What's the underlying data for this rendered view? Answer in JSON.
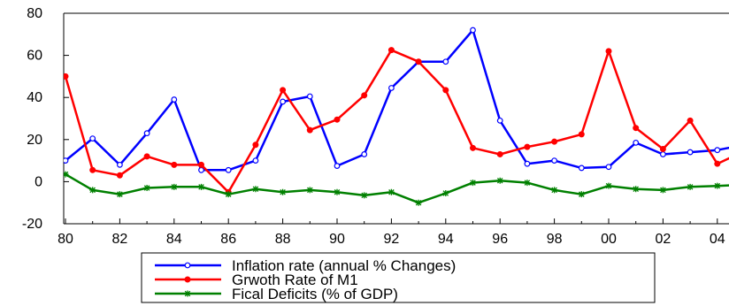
{
  "chart_data": {
    "type": "line",
    "x": [
      "80",
      "81",
      "82",
      "83",
      "84",
      "85",
      "86",
      "87",
      "88",
      "89",
      "90",
      "91",
      "92",
      "93",
      "94",
      "95",
      "96",
      "97",
      "98",
      "99",
      "00",
      "01",
      "02",
      "03",
      "04",
      "05"
    ],
    "xticks": [
      "80",
      "82",
      "84",
      "86",
      "88",
      "90",
      "92",
      "94",
      "96",
      "98",
      "00",
      "02",
      "04"
    ],
    "yticks": [
      "80",
      "60",
      "40",
      "20",
      "0",
      "-20"
    ],
    "ylim": [
      -20,
      80
    ],
    "grid": false,
    "legend_position": "bottom-center",
    "series": [
      {
        "name": "Inflation rate (annual % Changes)",
        "color": "#0000ff",
        "marker": "circle",
        "values": [
          10,
          20.5,
          8,
          23,
          39,
          5.5,
          5.5,
          10,
          38,
          40.5,
          7.5,
          13,
          44.5,
          57,
          57,
          72,
          29,
          8.5,
          10,
          6.5,
          7,
          18.5,
          13,
          14,
          15,
          17.5
        ]
      },
      {
        "name": "Grwoth Rate of M1",
        "color": "#ff0000",
        "marker": "dot",
        "values": [
          50,
          5.5,
          3,
          12,
          8,
          8,
          -5,
          17.5,
          43.5,
          24.5,
          29.5,
          41,
          62.5,
          57,
          43.5,
          16,
          13,
          16.5,
          19,
          22.5,
          62,
          25.5,
          15.5,
          29,
          8.5,
          14.5
        ]
      },
      {
        "name": "Fical Deficits (% of GDP)",
        "color": "#008000",
        "marker": "star",
        "values": [
          3.5,
          -4,
          -6,
          -3,
          -2.5,
          -2.5,
          -6,
          -3.5,
          -5,
          -4,
          -5,
          -6.5,
          -5,
          -10,
          -5.5,
          -0.5,
          0.5,
          -0.5,
          -4,
          -6,
          -2,
          -3.5,
          -4,
          -2.5,
          -2,
          -1.5
        ]
      }
    ]
  }
}
